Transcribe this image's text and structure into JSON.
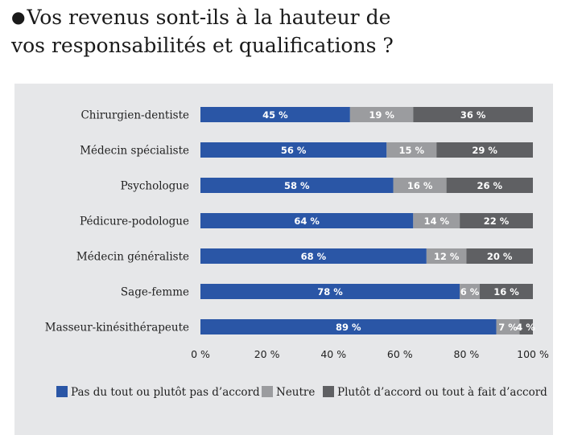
{
  "header": {
    "bullet": "●",
    "title_line1": "Vos revenus sont-ils à la hauteur de",
    "title_line2": "vos responsabilités et qualifications ?"
  },
  "chart_data": {
    "type": "bar",
    "orientation": "horizontal",
    "stacked": true,
    "title": "Vos revenus sont-ils à la hauteur de vos responsabilités et qualifications ?",
    "categories": [
      "Chirurgien-dentiste",
      "Médecin spécialiste",
      "Psychologue",
      "Pédicure-podologue",
      "Médecin généraliste",
      "Sage-femme",
      "Masseur-kinésithérapeute"
    ],
    "series": [
      {
        "name": "Pas du tout ou plutôt pas d’accord",
        "color": "#2a56a6",
        "values": [
          45,
          56,
          58,
          64,
          68,
          78,
          89
        ]
      },
      {
        "name": "Neutre",
        "color": "#9b9c9f",
        "values": [
          19,
          15,
          16,
          14,
          12,
          6,
          7
        ]
      },
      {
        "name": "Plutôt d’accord ou tout à fait d’accord",
        "color": "#5f6063",
        "values": [
          36,
          29,
          26,
          22,
          20,
          16,
          4
        ]
      }
    ],
    "xlim": [
      0,
      100
    ],
    "xticks": [
      "0 %",
      "20 %",
      "40 %",
      "60 %",
      "80 %",
      "100 %"
    ],
    "value_suffix": " %",
    "legend_position": "bottom"
  }
}
